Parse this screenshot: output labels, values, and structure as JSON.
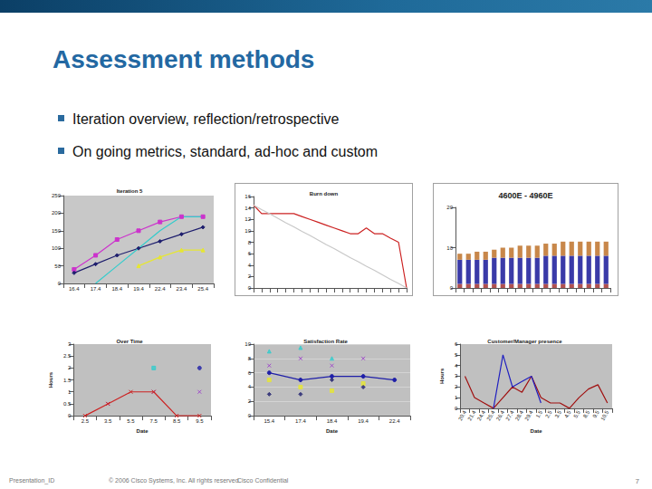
{
  "slide": {
    "title": "Assessment methods",
    "bullets": [
      "Iteration overview, reflection/retrospective",
      "On going metrics, standard, ad-hoc and custom"
    ],
    "footer": {
      "left": "Presentation_ID",
      "center": "© 2006 Cisco Systems, Inc. All rights reserved.",
      "right": "Cisco Confidential",
      "page": 7
    }
  },
  "chart_data": [
    {
      "type": "line",
      "title": "Iteration 5",
      "categories": [
        "16.4",
        "17.4",
        "18.4",
        "19.4",
        "22.4",
        "23.4",
        "25.4"
      ],
      "series": [
        {
          "color": "#cc33cc",
          "marker": "square",
          "values": [
            40,
            80,
            125,
            150,
            175,
            190,
            190
          ]
        },
        {
          "color": "#1f1f6e",
          "marker": "diamond",
          "values": [
            30,
            55,
            80,
            100,
            120,
            140,
            160
          ]
        },
        {
          "color": "#33cccc",
          "marker": "none",
          "values": [
            null,
            0,
            50,
            100,
            150,
            190,
            190
          ]
        },
        {
          "color": "#e6e633",
          "marker": "triangle",
          "values": [
            null,
            null,
            null,
            50,
            75,
            95,
            95
          ]
        }
      ],
      "ylim": [
        0,
        250
      ],
      "yticks": [
        0,
        50,
        100,
        150,
        200,
        250
      ],
      "grid": false
    },
    {
      "type": "line",
      "title": "Burn down",
      "categories": [
        null,
        null,
        null,
        null,
        null,
        null,
        null,
        null,
        null,
        null,
        null,
        null,
        null,
        null,
        null,
        null,
        null,
        null,
        null,
        null
      ],
      "series": [
        {
          "color": "#cc2222",
          "marker": "none",
          "values": [
            14.5,
            13,
            13,
            13,
            13,
            13,
            12.5,
            12,
            11.5,
            11,
            10.5,
            10,
            9.5,
            9.5,
            10.5,
            9.5,
            9.5,
            8.7,
            8,
            0
          ]
        },
        {
          "color": "#c8c8c8",
          "marker": "none",
          "values": [
            14.5,
            13.7,
            13,
            12.2,
            11.4,
            10.7,
            9.9,
            9.2,
            8.4,
            7.6,
            6.9,
            6.1,
            5.3,
            4.6,
            3.8,
            3.1,
            2.3,
            1.5,
            0.8,
            0
          ]
        }
      ],
      "ylim": [
        0,
        16
      ],
      "yticks": [
        0,
        2,
        4,
        6,
        8,
        10,
        12,
        14,
        16
      ],
      "grid": false,
      "tick_labels": "y"
    },
    {
      "type": "bar",
      "title": "4600E - 4960E",
      "stacked": true,
      "categories": [
        null,
        null,
        null,
        null,
        null,
        null,
        null,
        null,
        null,
        null,
        null,
        null,
        null,
        null,
        null,
        null,
        null,
        null
      ],
      "series": [
        {
          "color": "#b05050",
          "values": [
            1,
            1,
            1,
            1,
            1,
            1,
            1,
            1,
            1,
            1,
            1,
            1,
            1,
            1,
            1,
            1,
            1,
            1
          ]
        },
        {
          "color": "#3a3aa8",
          "values": [
            6,
            6,
            6,
            6,
            6.5,
            6.5,
            6.5,
            6.5,
            6.5,
            6.5,
            7,
            7,
            7,
            7,
            7,
            7,
            7,
            7
          ]
        },
        {
          "color": "#c8874a",
          "values": [
            1.5,
            1.5,
            2,
            2,
            2,
            2.5,
            2.5,
            3,
            3,
            3,
            3,
            3,
            3.5,
            3.5,
            3.5,
            3.5,
            3.5,
            3.5
          ]
        }
      ],
      "ylim": [
        0,
        20
      ],
      "yticks": [
        0,
        10,
        20
      ],
      "grid": false,
      "tick_labels": "y"
    },
    {
      "type": "line",
      "title": "Over Time",
      "x_label": "Date",
      "y_label": "Hours",
      "categories": [
        "2.5",
        "3.5",
        "5.5",
        "7.5",
        "8.5",
        "9.5"
      ],
      "series": [
        {
          "color": "#cc2222",
          "marker": "x",
          "values": [
            0,
            0.5,
            1,
            1,
            0,
            0
          ]
        },
        {
          "type": "scatter",
          "color": "#9933cc",
          "marker": "x",
          "values": [
            null,
            0.5,
            null,
            1,
            null,
            1
          ]
        },
        {
          "type": "scatter",
          "color": "#1f1fa8",
          "marker": "circle",
          "values": [
            null,
            null,
            null,
            null,
            null,
            2
          ]
        },
        {
          "type": "scatter",
          "color": "#33cccc",
          "marker": "square",
          "values": [
            null,
            null,
            null,
            2,
            null,
            null
          ]
        }
      ],
      "ylim": [
        0,
        3
      ],
      "yticks": [
        0,
        0.5,
        1,
        1.5,
        2,
        2.5,
        3
      ],
      "grid": false
    },
    {
      "type": "line",
      "title": "Satisfaction Rate",
      "x_label": "Date",
      "categories": [
        "15.4",
        "17.4",
        "18.4",
        "19.4",
        "22.4"
      ],
      "series": [
        {
          "color": "#1f1fa8",
          "marker": "circle",
          "values": [
            6,
            5,
            5.5,
            5.5,
            5
          ]
        },
        {
          "type": "scatter",
          "color": "#9933cc",
          "marker": "x",
          "values": [
            7,
            8,
            7,
            8,
            null
          ]
        },
        {
          "type": "scatter",
          "color": "#33cccc",
          "marker": "triangle",
          "values": [
            9,
            9.5,
            8,
            null,
            null
          ]
        },
        {
          "type": "scatter",
          "color": "#e6e633",
          "marker": "square",
          "values": [
            5,
            4,
            3.5,
            4.5,
            null
          ]
        },
        {
          "type": "scatter",
          "color": "#1f1f6e",
          "marker": "diamond",
          "values": [
            3,
            3,
            5,
            4,
            null
          ]
        }
      ],
      "ylim": [
        0,
        10
      ],
      "yticks": [
        0,
        2,
        4,
        6,
        8,
        10
      ],
      "grid": true
    },
    {
      "type": "line",
      "title": "Customer/Manager presence",
      "x_label": "Date",
      "y_label": "Hours",
      "categories": [
        "20.4",
        "21.4",
        "24.4",
        "25.4",
        "26.4",
        "27.4",
        "28.4",
        "29.4",
        "1.5",
        "2.5",
        "3.5",
        "4.5",
        "5.5",
        "8.5",
        "9.5",
        "10.5"
      ],
      "series": [
        {
          "color": "#a01010",
          "marker": "none",
          "values": [
            3,
            1,
            0.5,
            0,
            1,
            2,
            1.5,
            3,
            1,
            0.5,
            0.5,
            0,
            1,
            1.8,
            2.2,
            0.5
          ]
        },
        {
          "color": "#2020c0",
          "marker": "none",
          "values": [
            null,
            null,
            null,
            0,
            5,
            2,
            2.5,
            3,
            0.5,
            null,
            null,
            null,
            null,
            null,
            null,
            null
          ]
        }
      ],
      "ylim": [
        0,
        6
      ],
      "yticks": [
        0,
        1,
        2,
        3,
        4,
        5,
        6
      ],
      "grid": false
    }
  ]
}
